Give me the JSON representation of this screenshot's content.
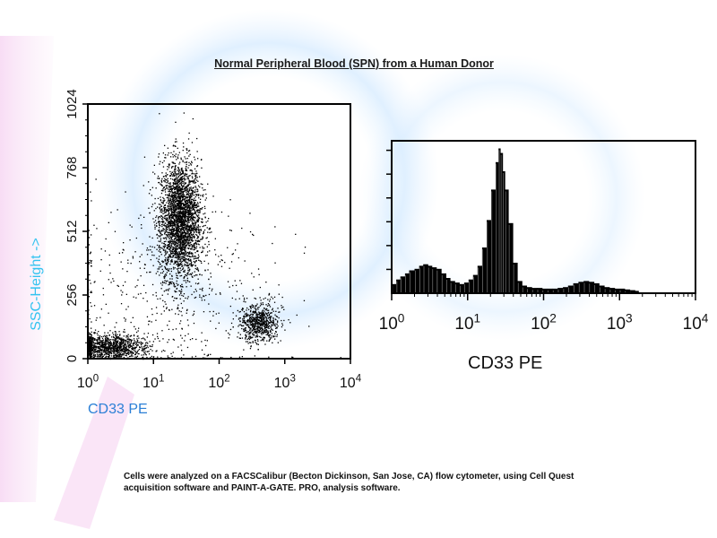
{
  "figure": {
    "title": "Normal Peripheral Blood (SPN) from a Human Donor",
    "footnote_line1": "Cells were analyzed on a FACSCalibur (Becton Dickinson, San Jose, CA) flow cytometer, using Cell Quest",
    "footnote_line2": "acquisition software and PAINT-A-GATE. PRO, analysis software."
  },
  "chart_data": [
    {
      "type": "scatter",
      "title": "",
      "xlabel": "CD33 PE",
      "ylabel": "SSC-Height ->",
      "x_scale": "log",
      "xlim": [
        1,
        10000
      ],
      "ylim": [
        0,
        1024
      ],
      "x_tick_labels": [
        {
          "base": "10",
          "exp": "0",
          "value": 1
        },
        {
          "base": "10",
          "exp": "1",
          "value": 10
        },
        {
          "base": "10",
          "exp": "2",
          "value": 100
        },
        {
          "base": "10",
          "exp": "3",
          "value": 1000
        },
        {
          "base": "10",
          "exp": "4",
          "value": 10000
        }
      ],
      "y_ticks": [
        0,
        256,
        512,
        768,
        1024
      ],
      "y_tick_labels": [
        "0",
        "256",
        "512",
        "768",
        "1024"
      ],
      "color": "#000000",
      "populations": [
        {
          "x_center": 25,
          "y_center": 560,
          "x_log_spread": 0.16,
          "y_spread": 120,
          "share": 0.55
        },
        {
          "x_center": 2,
          "y_center": 50,
          "x_log_spread": 0.3,
          "y_spread": 25,
          "share": 0.22
        },
        {
          "x_center": 400,
          "y_center": 145,
          "x_log_spread": 0.15,
          "y_spread": 40,
          "share": 0.13
        },
        {
          "x_center": 20,
          "y_center": 250,
          "x_log_spread": 0.8,
          "y_spread": 200,
          "share": 0.1
        }
      ]
    },
    {
      "type": "bar",
      "title": "",
      "xlabel": "CD33 PE",
      "ylabel": "",
      "x_scale": "log",
      "xlim": [
        1,
        10000
      ],
      "x_tick_labels": [
        {
          "base": "10",
          "exp": "0",
          "value": 1
        },
        {
          "base": "10",
          "exp": "1",
          "value": 10
        },
        {
          "base": "10",
          "exp": "2",
          "value": 100
        },
        {
          "base": "10",
          "exp": "3",
          "value": 1000
        },
        {
          "base": "10",
          "exp": "4",
          "value": 10000
        }
      ],
      "ylim": [
        0,
        1
      ],
      "color": "#000000",
      "histogram": [
        {
          "x": 1.0,
          "y": 0.06
        },
        {
          "x": 1.15,
          "y": 0.09
        },
        {
          "x": 1.3,
          "y": 0.11
        },
        {
          "x": 1.5,
          "y": 0.13
        },
        {
          "x": 1.7,
          "y": 0.15
        },
        {
          "x": 2.0,
          "y": 0.16
        },
        {
          "x": 2.3,
          "y": 0.18
        },
        {
          "x": 2.6,
          "y": 0.19
        },
        {
          "x": 3.0,
          "y": 0.18
        },
        {
          "x": 3.4,
          "y": 0.17
        },
        {
          "x": 3.9,
          "y": 0.16
        },
        {
          "x": 4.5,
          "y": 0.13
        },
        {
          "x": 5.2,
          "y": 0.1
        },
        {
          "x": 5.9,
          "y": 0.08
        },
        {
          "x": 6.8,
          "y": 0.07
        },
        {
          "x": 7.8,
          "y": 0.06
        },
        {
          "x": 9.0,
          "y": 0.07
        },
        {
          "x": 10.3,
          "y": 0.09
        },
        {
          "x": 11.8,
          "y": 0.12
        },
        {
          "x": 13.5,
          "y": 0.18
        },
        {
          "x": 15.5,
          "y": 0.3
        },
        {
          "x": 17.8,
          "y": 0.48
        },
        {
          "x": 20.4,
          "y": 0.68
        },
        {
          "x": 23.4,
          "y": 0.86
        },
        {
          "x": 25.5,
          "y": 0.95
        },
        {
          "x": 27.0,
          "y": 0.92
        },
        {
          "x": 29.0,
          "y": 0.8
        },
        {
          "x": 31.0,
          "y": 0.68
        },
        {
          "x": 34.5,
          "y": 0.46
        },
        {
          "x": 39.5,
          "y": 0.2
        },
        {
          "x": 45.3,
          "y": 0.08
        },
        {
          "x": 52.0,
          "y": 0.05
        },
        {
          "x": 60.0,
          "y": 0.04
        },
        {
          "x": 70.0,
          "y": 0.035
        },
        {
          "x": 82.0,
          "y": 0.035
        },
        {
          "x": 96.0,
          "y": 0.03
        },
        {
          "x": 112.0,
          "y": 0.03
        },
        {
          "x": 131.0,
          "y": 0.03
        },
        {
          "x": 153.0,
          "y": 0.035
        },
        {
          "x": 180.0,
          "y": 0.04
        },
        {
          "x": 210.0,
          "y": 0.05
        },
        {
          "x": 246.0,
          "y": 0.065
        },
        {
          "x": 288.0,
          "y": 0.075
        },
        {
          "x": 337.0,
          "y": 0.08
        },
        {
          "x": 394.0,
          "y": 0.075
        },
        {
          "x": 461.0,
          "y": 0.065
        },
        {
          "x": 540.0,
          "y": 0.05
        },
        {
          "x": 631.0,
          "y": 0.04
        },
        {
          "x": 739.0,
          "y": 0.035
        },
        {
          "x": 865.0,
          "y": 0.03
        },
        {
          "x": 1000.0,
          "y": 0.03
        },
        {
          "x": 1170.0,
          "y": 0.025
        },
        {
          "x": 1370.0,
          "y": 0.02
        },
        {
          "x": 1600.0,
          "y": 0.015
        }
      ]
    }
  ]
}
